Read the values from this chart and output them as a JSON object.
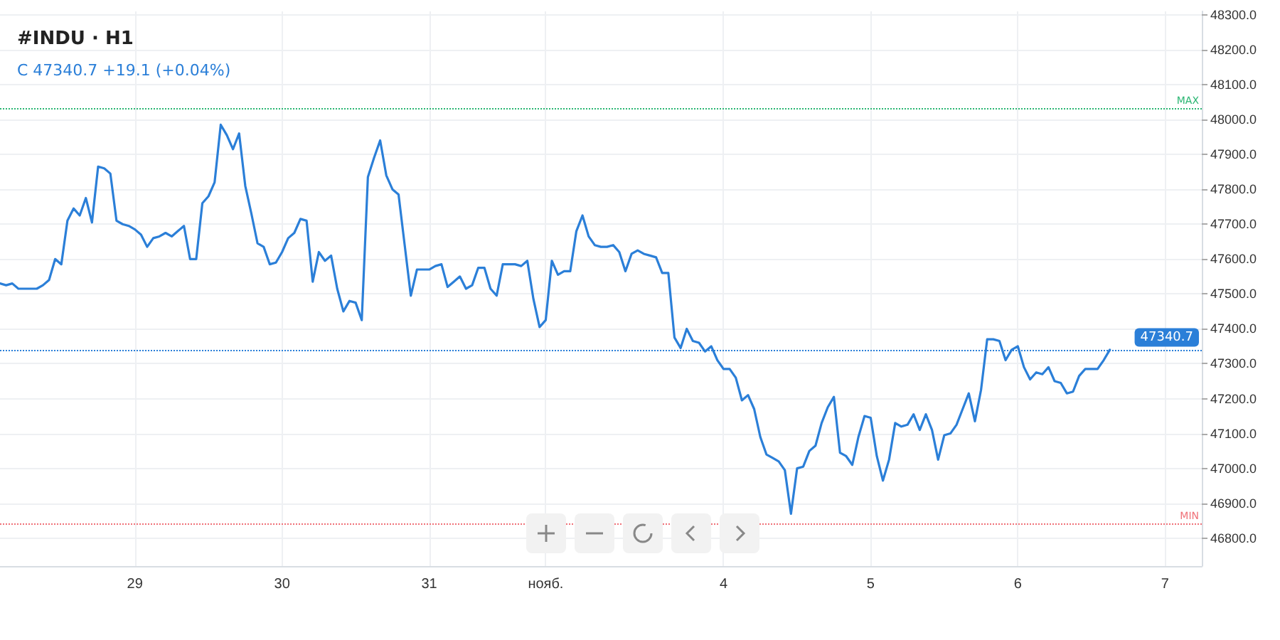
{
  "chart_data": {
    "type": "line",
    "title": "#INDU · H1",
    "subtitle": "C 47340.7 +19.1 (+0.04%)",
    "categories": [
      null,
      null,
      null,
      null,
      null,
      null,
      null,
      null,
      null,
      null,
      null,
      null,
      null,
      null,
      null,
      null,
      null,
      null,
      null,
      null,
      null,
      null,
      "29",
      null,
      null,
      null,
      null,
      null,
      null,
      null,
      null,
      null,
      null,
      null,
      null,
      null,
      null,
      null,
      null,
      null,
      null,
      null,
      null,
      null,
      null,
      null,
      "30",
      null,
      null,
      null,
      null,
      null,
      null,
      null,
      null,
      null,
      null,
      null,
      null,
      null,
      null,
      null,
      null,
      null,
      null,
      null,
      null,
      null,
      null,
      null,
      "31",
      null,
      null,
      null,
      null,
      null,
      null,
      null,
      null,
      null,
      null,
      null,
      null,
      null,
      null,
      null,
      null,
      null,
      null,
      "нояб.",
      null,
      null,
      null,
      null,
      null,
      null,
      null,
      null,
      null,
      null,
      null,
      null,
      null,
      null,
      null,
      null,
      null,
      null,
      null,
      null,
      null,
      null,
      null,
      null,
      null,
      null,
      null,
      null,
      "4",
      null,
      null,
      null,
      null,
      null,
      null,
      null,
      null,
      null,
      null,
      null,
      null,
      null,
      null,
      null,
      null,
      null,
      null,
      null,
      null,
      null,
      null,
      null,
      "5",
      null,
      null,
      null,
      null,
      null,
      null,
      null,
      null,
      null,
      null,
      null,
      null,
      null,
      null,
      null,
      null,
      null,
      null,
      null,
      null,
      null,
      null,
      null,
      "6",
      null,
      null,
      null,
      null,
      null,
      null,
      null,
      null,
      null,
      null,
      null,
      null,
      null,
      null,
      null,
      null,
      null,
      null,
      null,
      null,
      null,
      null,
      null,
      "7",
      null,
      null,
      null,
      null,
      null,
      null
    ],
    "series": [
      {
        "color": "#2b7fd8",
        "values": [
          47530,
          47525,
          47530,
          47515,
          47515,
          47515,
          47515,
          47525,
          47540,
          47600,
          47585,
          47710,
          47745,
          47725,
          47775,
          47705,
          47865,
          47860,
          47845,
          47710,
          47700,
          47695,
          47685,
          47670,
          47635,
          47660,
          47665,
          47675,
          47665,
          47680,
          47695,
          47600,
          47600,
          47760,
          47780,
          47820,
          47985,
          47955,
          47915,
          47960,
          47810,
          47730,
          47645,
          47635,
          47585,
          47590,
          47620,
          47660,
          47675,
          47715,
          47710,
          47535,
          47620,
          47595,
          47610,
          47515,
          47450,
          47480,
          47475,
          47425,
          47835,
          47890,
          47940,
          47840,
          47800,
          47785,
          47640,
          47495,
          47570,
          47570,
          47570,
          47580,
          47585,
          47520,
          47535,
          47550,
          47515,
          47525,
          47575,
          47575,
          47515,
          47495,
          47585,
          47585,
          47585,
          47580,
          47595,
          47485,
          47405,
          47425,
          47595,
          47555,
          47565,
          47565,
          47680,
          47725,
          47665,
          47640,
          47635,
          47635,
          47640,
          47620,
          47565,
          47615,
          47625,
          47615,
          47610,
          47605,
          47560,
          47560,
          47375,
          47345,
          47400,
          47365,
          47360,
          47335,
          47350,
          47310,
          47285,
          47285,
          47260,
          47195,
          47210,
          47170,
          47090,
          47040,
          47030,
          47020,
          46995,
          46870,
          47000,
          47005,
          47050,
          47065,
          47130,
          47175,
          47205,
          47045,
          47035,
          47010,
          47090,
          47150,
          47145,
          47035,
          46965,
          47025,
          47130,
          47120,
          47125,
          47155,
          47110,
          47155,
          47110,
          47025,
          47095,
          47100,
          47125,
          47170,
          47215,
          47135,
          47225,
          47370,
          47370,
          47365,
          47310,
          47340,
          47350,
          47290,
          47255,
          47275,
          47270,
          47290,
          47250,
          47245,
          47215,
          47220,
          47265,
          47285,
          47285,
          47285,
          47310,
          47340,
          null,
          null,
          null,
          null,
          null,
          null,
          null,
          null,
          null,
          null,
          null,
          null,
          null,
          null,
          null
        ]
      }
    ],
    "ylim": [
      46720,
      48310
    ],
    "yticks": [
      {
        "value": 46800,
        "label": "46800.0"
      },
      {
        "value": 46900,
        "label": "46900.0"
      },
      {
        "value": 47000,
        "label": "47000.0"
      },
      {
        "value": 47100,
        "label": "47100.0"
      },
      {
        "value": 47200,
        "label": "47200.0"
      },
      {
        "value": 47300,
        "label": "47300.0"
      },
      {
        "value": 47400,
        "label": "47400.0"
      },
      {
        "value": 47500,
        "label": "47500.0"
      },
      {
        "value": 47600,
        "label": "47600.0"
      },
      {
        "value": 47700,
        "label": "47700.0"
      },
      {
        "value": 47800,
        "label": "47800.0"
      },
      {
        "value": 47900,
        "label": "47900.0"
      },
      {
        "value": 48000,
        "label": "48000.0"
      },
      {
        "value": 48100,
        "label": "48100.0"
      },
      {
        "value": 48200,
        "label": "48200.0"
      },
      {
        "value": 48300,
        "label": "48300.0"
      }
    ],
    "ref_lines": [
      {
        "axis": "y",
        "value": 48030,
        "label": "MAX",
        "color": "#2bb673",
        "line_style": "dotted"
      },
      {
        "axis": "y",
        "value": 46840,
        "label": "MIN",
        "color": "#f07178",
        "line_style": "dotted"
      },
      {
        "axis": "y",
        "value": 47340.7,
        "label": "47340.7",
        "color": "#2b7fd8",
        "line_style": "dotted"
      }
    ],
    "grid": true,
    "marker": "none",
    "line_style": "solid"
  }
}
